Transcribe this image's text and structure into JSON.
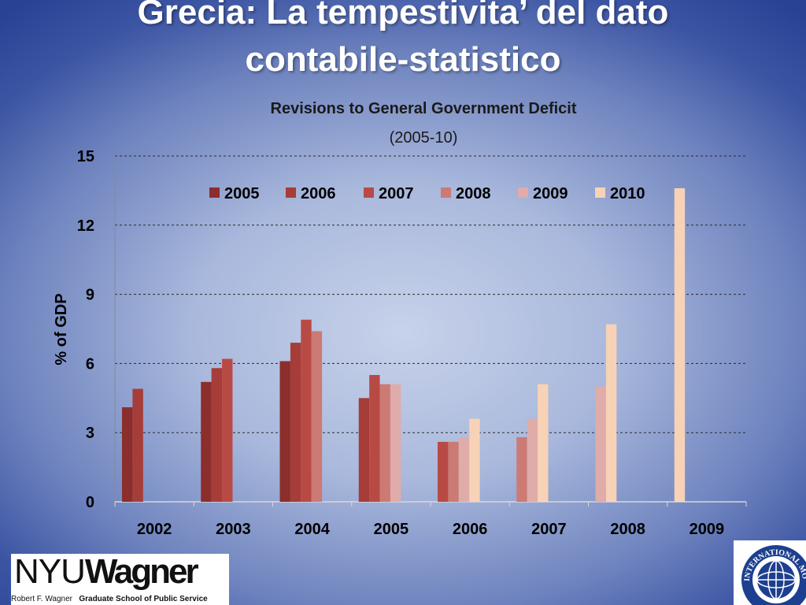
{
  "slide": {
    "title_line1": "Grecia: La tempestivita’ del dato",
    "title_line2": "contabile-statistico"
  },
  "logos": {
    "nyu_part1": "NYU",
    "nyu_part2": "Wagner",
    "nyu_sub_plain": "Robert F. Wagner",
    "nyu_sub_bold": "Graduate School of Public Service",
    "imf_text": "INTERNATIONAL MONETARY FUND"
  },
  "chart_data": {
    "type": "bar",
    "title": "Revisions to General Government Deficit",
    "subtitle": "(2005-10)",
    "ylabel": "% of GDP",
    "xlabel": "",
    "ylim": [
      0,
      15
    ],
    "yticks": [
      0,
      3,
      6,
      9,
      12,
      15
    ],
    "grid": true,
    "legend_position": "top",
    "categories": [
      "2002",
      "2003",
      "2004",
      "2005",
      "2006",
      "2007",
      "2008",
      "2009"
    ],
    "series": [
      {
        "name": "2005",
        "color": "#8b2e2c",
        "values": [
          4.1,
          5.2,
          6.1,
          null,
          null,
          null,
          null,
          null
        ]
      },
      {
        "name": "2006",
        "color": "#a63d38",
        "values": [
          4.9,
          5.8,
          6.9,
          4.5,
          null,
          null,
          null,
          null
        ]
      },
      {
        "name": "2007",
        "color": "#b84a45",
        "values": [
          null,
          6.2,
          7.9,
          5.5,
          2.6,
          null,
          null,
          null
        ]
      },
      {
        "name": "2008",
        "color": "#cc7a74",
        "values": [
          null,
          null,
          7.4,
          5.1,
          2.6,
          2.8,
          null,
          null
        ]
      },
      {
        "name": "2009",
        "color": "#dfacaa",
        "values": [
          null,
          null,
          null,
          5.1,
          2.8,
          3.6,
          5.0,
          null
        ]
      },
      {
        "name": "2010",
        "color": "#f8d2b6",
        "values": [
          null,
          null,
          null,
          null,
          3.6,
          5.1,
          7.7,
          13.6
        ]
      }
    ]
  }
}
